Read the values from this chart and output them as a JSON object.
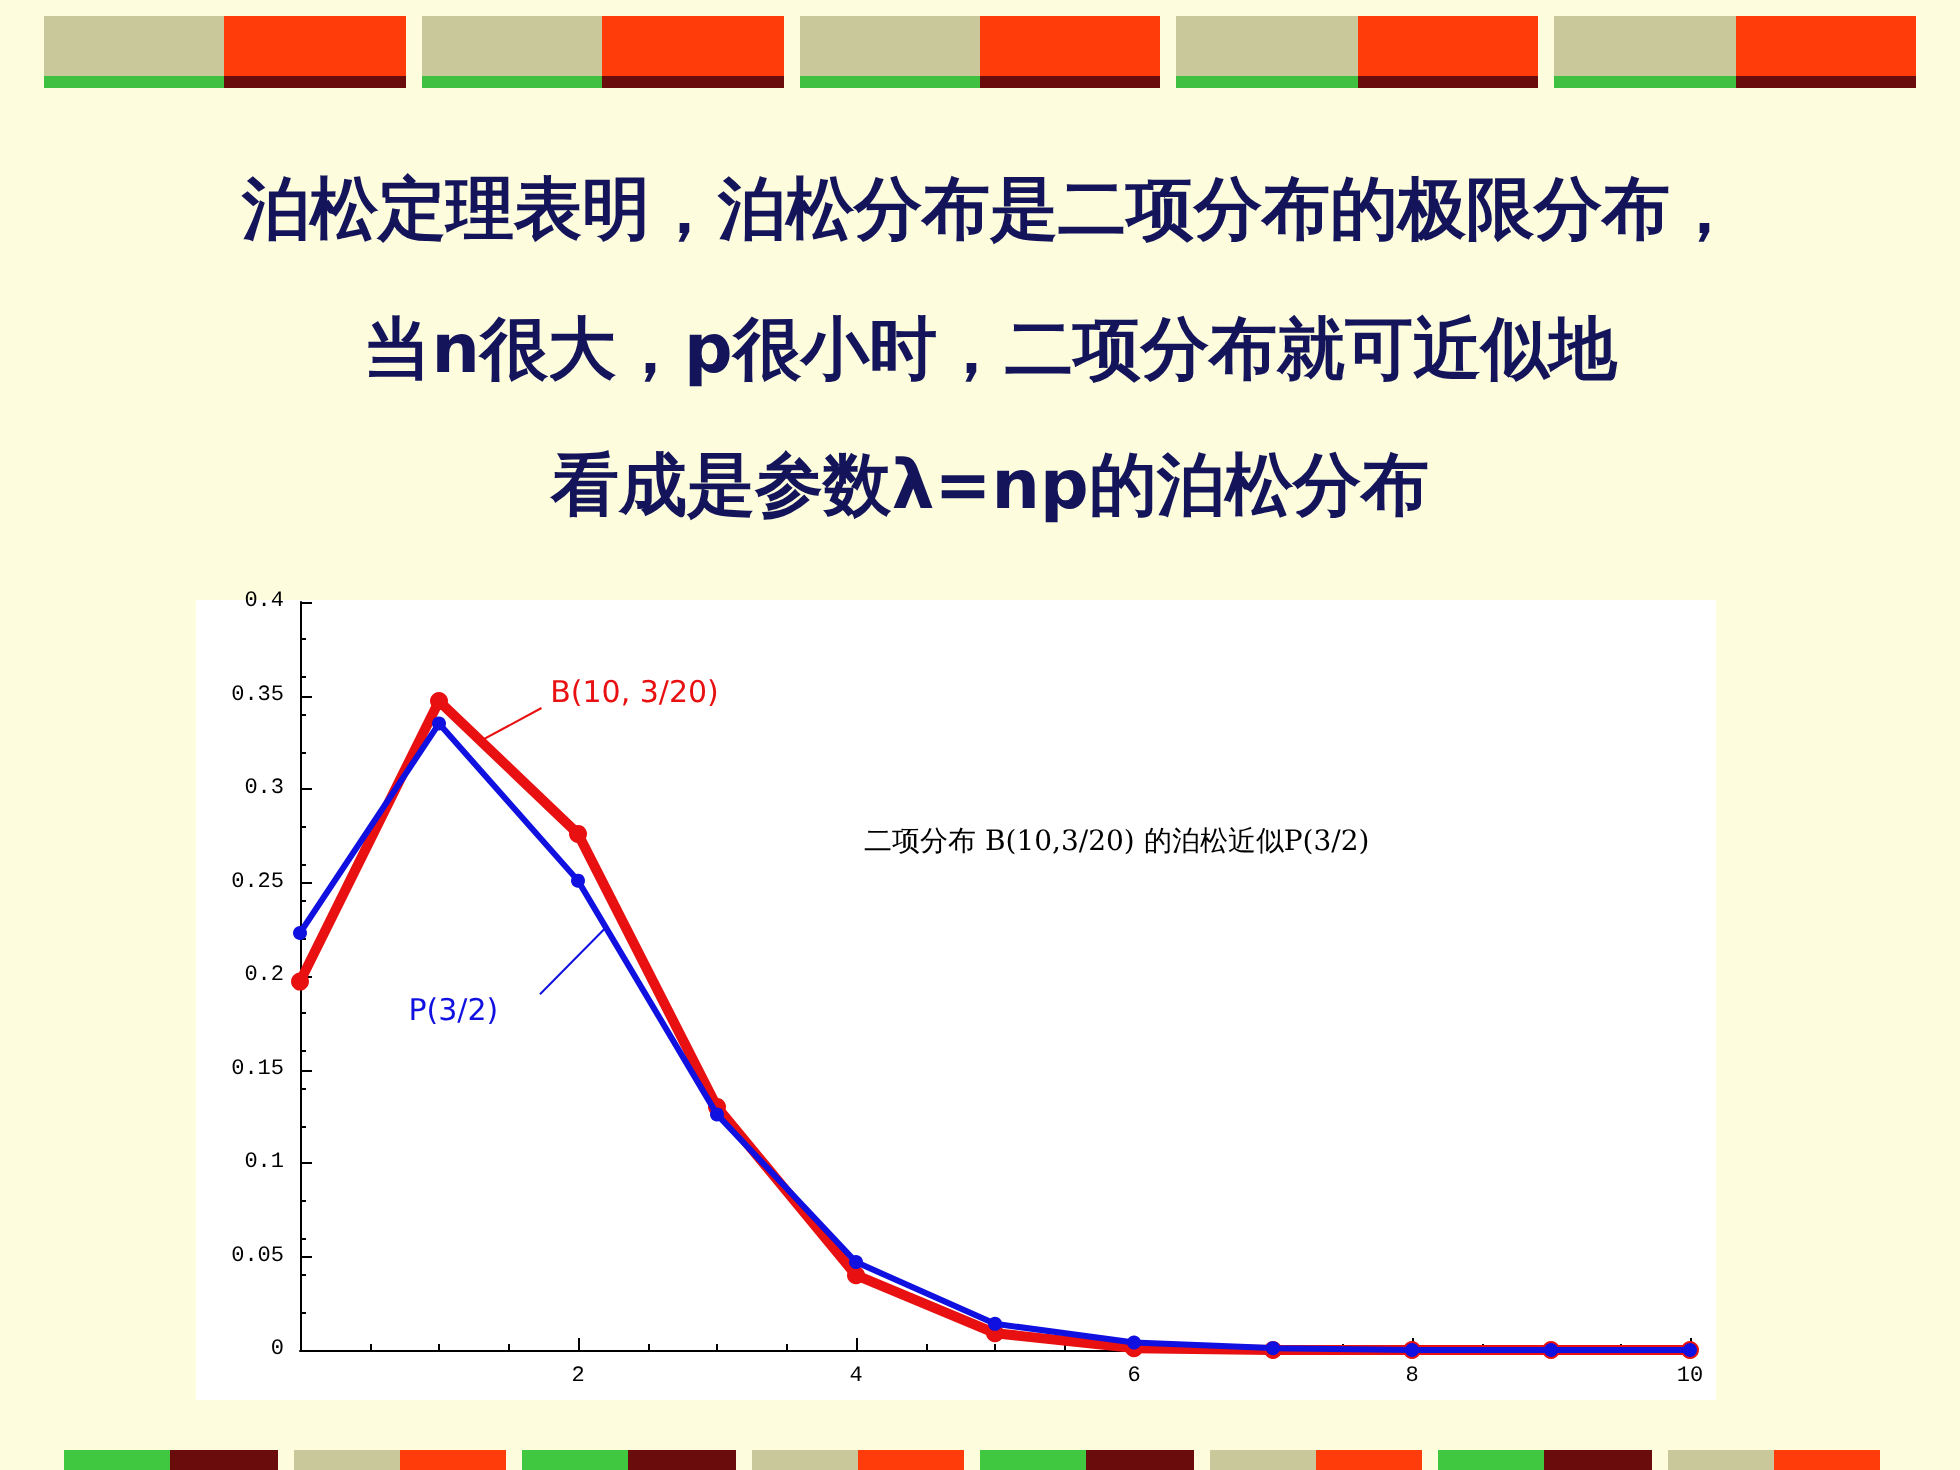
{
  "chart_data": {
    "type": "line",
    "title": "泊松定理表明，泊松分布是二项分布的极限分布，",
    "subtitle": "当n很大，p很小时，二项分布就可近似地看成是参数λ=np的泊松分布",
    "x": [
      0,
      1,
      2,
      3,
      4,
      5,
      6,
      7,
      8,
      9,
      10
    ],
    "series": [
      {
        "name": "B(10, 3/20)",
        "color": "#e81010",
        "values": [
          0.197,
          0.347,
          0.276,
          0.13,
          0.04,
          0.009,
          0.001,
          0.0,
          0.0,
          0.0,
          0.0
        ]
      },
      {
        "name": "P(3/2)",
        "color": "#1010e0",
        "values": [
          0.223,
          0.335,
          0.251,
          0.126,
          0.047,
          0.014,
          0.004,
          0.001,
          0.0,
          0.0,
          0.0
        ]
      }
    ],
    "annotations": [
      "二项分布 B(10,3/20) 的泊松近似P(3/2)"
    ],
    "xlim": [
      0,
      10
    ],
    "xticks": [
      2,
      4,
      6,
      8,
      10
    ],
    "ylim": [
      0,
      0.4
    ],
    "yticks": [
      0,
      0.05,
      0.1,
      0.15,
      0.2,
      0.25,
      0.3,
      0.35,
      0.4
    ],
    "grid": false,
    "legend": false,
    "marker": "circle",
    "line_style": "solid"
  }
}
